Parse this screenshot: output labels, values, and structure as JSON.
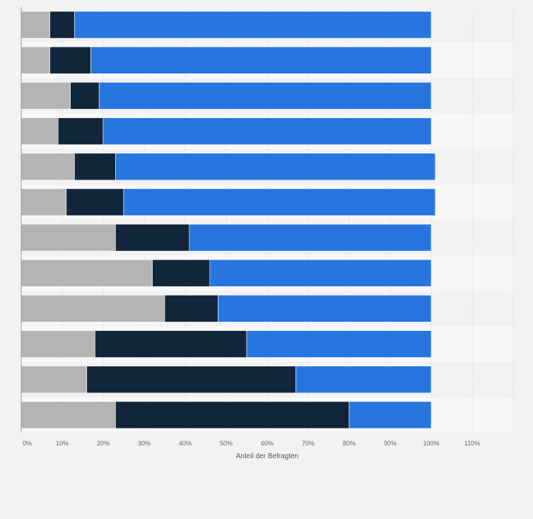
{
  "chart_data": {
    "type": "bar",
    "orientation": "horizontal",
    "stacked": true,
    "categories": [
      "",
      "",
      "",
      "",
      "",
      "",
      "",
      "",
      "",
      "",
      "",
      ""
    ],
    "series": [
      {
        "color": "#b4b4b4",
        "values": [
          7,
          7,
          12,
          9,
          13,
          11,
          23,
          32,
          35,
          18,
          16,
          23
        ]
      },
      {
        "color": "#12263b",
        "values": [
          6,
          10,
          7,
          11,
          10,
          14,
          18,
          14,
          13,
          37,
          51,
          57
        ]
      },
      {
        "color": "#2776e0",
        "values": [
          87,
          83,
          81,
          80,
          78,
          76,
          59,
          54,
          52,
          45,
          33,
          20
        ]
      }
    ],
    "xlim": [
      0,
      120
    ],
    "xticks": [
      "0%",
      "10%",
      "20%",
      "30%",
      "40%",
      "50%",
      "60%",
      "70%",
      "80%",
      "90%",
      "100%",
      "110%"
    ],
    "xlabel": "Anteil der Befragten",
    "grid": true,
    "legend": "none"
  }
}
